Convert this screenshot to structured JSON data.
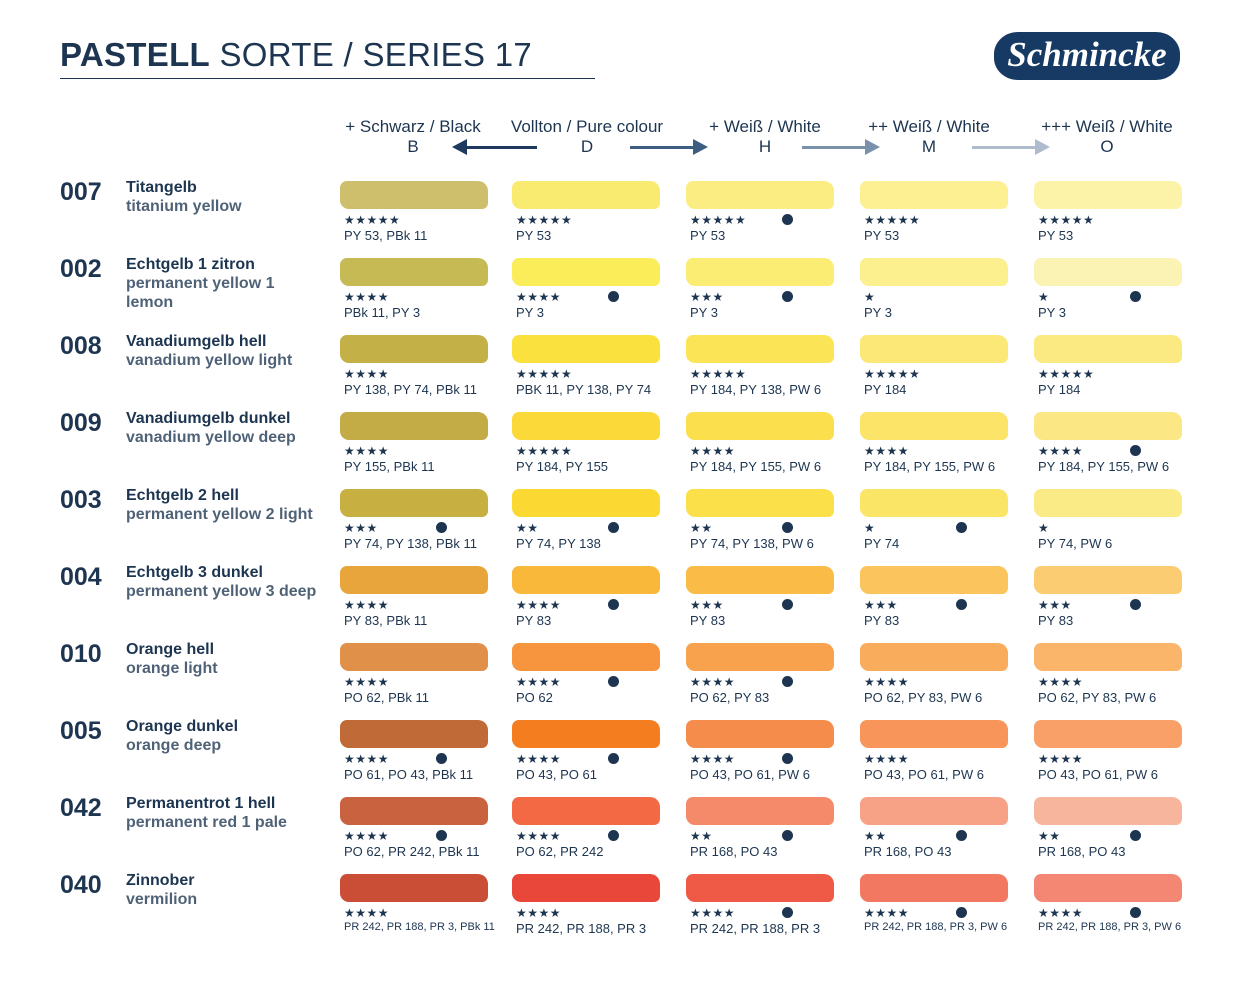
{
  "header": {
    "title_bold": "PASTELL",
    "title_rest": " SORTE / SERIES 17",
    "logo": "Schmincke"
  },
  "columns": [
    {
      "label": "+ Schwarz / Black",
      "code": "B"
    },
    {
      "label": "Vollton / Pure colour",
      "code": "D"
    },
    {
      "label": "+ Weiß / White",
      "code": "H"
    },
    {
      "label": "++ Weiß / White",
      "code": "M"
    },
    {
      "label": "+++ Weiß / White",
      "code": "O"
    }
  ],
  "arrows": [
    {
      "icon": "arrow-left-icon",
      "color": "#1d3a5e"
    },
    {
      "icon": "arrow-right-icon",
      "color": "#3d5e82"
    },
    {
      "icon": "arrow-right-icon",
      "color": "#7a91ab"
    },
    {
      "icon": "arrow-right-icon",
      "color": "#aebcce"
    }
  ],
  "rows": [
    {
      "number": "007",
      "name_de": "Titangelb",
      "name_en": "titanium yellow",
      "cells": [
        {
          "color": "#cdbf6c",
          "stars": "★★★★★",
          "dot": false,
          "pigments": "PY 53, PBk 11"
        },
        {
          "color": "#f9ea70",
          "stars": "★★★★★",
          "dot": false,
          "pigments": "PY 53"
        },
        {
          "color": "#fbed82",
          "stars": "★★★★★",
          "dot": true,
          "pigments": "PY 53"
        },
        {
          "color": "#fcf093",
          "stars": "★★★★★",
          "dot": false,
          "pigments": "PY 53"
        },
        {
          "color": "#fcf3a9",
          "stars": "★★★★★",
          "dot": false,
          "pigments": "PY 53"
        }
      ]
    },
    {
      "number": "002",
      "name_de": "Echtgelb 1 zitron",
      "name_en": "permanent yellow 1 lemon",
      "cells": [
        {
          "color": "#c6ba55",
          "stars": "★★★★",
          "dot": false,
          "pigments": "PBk 11, PY 3"
        },
        {
          "color": "#fbec5a",
          "stars": "★★★★",
          "dot": true,
          "pigments": "PY 3"
        },
        {
          "color": "#fbed74",
          "stars": "★★★",
          "dot": true,
          "pigments": "PY 3"
        },
        {
          "color": "#fbf08d",
          "stars": "★",
          "dot": false,
          "pigments": "PY 3"
        },
        {
          "color": "#fbf3b3",
          "stars": "★",
          "dot": true,
          "pigments": "PY 3"
        }
      ]
    },
    {
      "number": "008",
      "name_de": "Vanadiumgelb hell",
      "name_en": "vanadium yellow light",
      "cells": [
        {
          "color": "#c3b046",
          "stars": "★★★★",
          "dot": false,
          "pigments": "PY 138, PY 74, PBk 11"
        },
        {
          "color": "#fbe13e",
          "stars": "★★★★★",
          "dot": false,
          "pigments": "PBK 11, PY 138, PY 74"
        },
        {
          "color": "#fbe556",
          "stars": "★★★★★",
          "dot": false,
          "pigments": "PY 184, PY 138, PW 6"
        },
        {
          "color": "#fbe876",
          "stars": "★★★★★",
          "dot": false,
          "pigments": "PY 184"
        },
        {
          "color": "#fbea82",
          "stars": "★★★★★",
          "dot": false,
          "pigments": "PY 184"
        }
      ]
    },
    {
      "number": "009",
      "name_de": "Vanadiumgelb dunkel",
      "name_en": "vanadium yellow deep",
      "cells": [
        {
          "color": "#c3ab45",
          "stars": "★★★★",
          "dot": false,
          "pigments": "PY 155, PBk 11"
        },
        {
          "color": "#fbd938",
          "stars": "★★★★★",
          "dot": false,
          "pigments": "PY 184, PY 155"
        },
        {
          "color": "#fbdf4d",
          "stars": "★★★★",
          "dot": false,
          "pigments": "PY 184, PY 155, PW 6"
        },
        {
          "color": "#fbe468",
          "stars": "★★★★",
          "dot": false,
          "pigments": "PY 184, PY 155, PW 6"
        },
        {
          "color": "#fbe884",
          "stars": "★★★★",
          "dot": true,
          "pigments": "PY 184, PY 155, PW 6"
        }
      ]
    },
    {
      "number": "003",
      "name_de": "Echtgelb 2 hell",
      "name_en": "permanent yellow 2 light",
      "cells": [
        {
          "color": "#c7b041",
          "stars": "★★★",
          "dot": true,
          "pigments": "PY 74, PY 138, PBk 11"
        },
        {
          "color": "#fbd932",
          "stars": "★★",
          "dot": true,
          "pigments": "PY 74, PY 138"
        },
        {
          "color": "#fbe04a",
          "stars": "★★",
          "dot": true,
          "pigments": "PY 74, PY 138, PW 6"
        },
        {
          "color": "#fbe566",
          "stars": "★",
          "dot": true,
          "pigments": "PY 74"
        },
        {
          "color": "#fbeb86",
          "stars": "★",
          "dot": false,
          "pigments": "PY 74, PW 6"
        }
      ]
    },
    {
      "number": "004",
      "name_de": "Echtgelb 3 dunkel",
      "name_en": "permanent yellow 3 deep",
      "cells": [
        {
          "color": "#e8a53c",
          "stars": "★★★★",
          "dot": false,
          "pigments": "PY 83, PBk 11"
        },
        {
          "color": "#f9b83a",
          "stars": "★★★★",
          "dot": true,
          "pigments": "PY 83"
        },
        {
          "color": "#fabc47",
          "stars": "★★★",
          "dot": true,
          "pigments": "PY 83"
        },
        {
          "color": "#fbc45c",
          "stars": "★★★",
          "dot": true,
          "pigments": "PY 83"
        },
        {
          "color": "#fbcc72",
          "stars": "★★★",
          "dot": true,
          "pigments": "PY 83"
        }
      ]
    },
    {
      "number": "010",
      "name_de": "Orange hell",
      "name_en": "orange light",
      "cells": [
        {
          "color": "#e09048",
          "stars": "★★★★",
          "dot": false,
          "pigments": "PO 62, PBk 11"
        },
        {
          "color": "#f7953e",
          "stars": "★★★★",
          "dot": true,
          "pigments": "PO 62"
        },
        {
          "color": "#f8a24e",
          "stars": "★★★★",
          "dot": true,
          "pigments": "PO 62, PY 83"
        },
        {
          "color": "#f9ac5c",
          "stars": "★★★★",
          "dot": false,
          "pigments": "PO 62, PY 83, PW 6"
        },
        {
          "color": "#fab56a",
          "stars": "★★★★",
          "dot": false,
          "pigments": "PO 62, PY 83, PW 6"
        }
      ]
    },
    {
      "number": "005",
      "name_de": "Orange dunkel",
      "name_en": "orange deep",
      "cells": [
        {
          "color": "#c06a38",
          "stars": "★★★★",
          "dot": true,
          "pigments": "PO 61, PO 43, PBk 11"
        },
        {
          "color": "#f47d20",
          "stars": "★★★★",
          "dot": true,
          "pigments": "PO 43, PO 61"
        },
        {
          "color": "#f68c4c",
          "stars": "★★★★",
          "dot": true,
          "pigments": "PO 43, PO 61, PW 6"
        },
        {
          "color": "#f7955a",
          "stars": "★★★★",
          "dot": false,
          "pigments": "PO 43, PO 61, PW 6"
        },
        {
          "color": "#f8a068",
          "stars": "★★★★",
          "dot": false,
          "pigments": "PO 43, PO 61, PW 6"
        }
      ]
    },
    {
      "number": "042",
      "name_de": "Permanentrot 1 hell",
      "name_en": "permanent red 1 pale",
      "cells": [
        {
          "color": "#c9623e",
          "stars": "★★★★",
          "dot": true,
          "pigments": "PO 62, PR 242, PBk 11"
        },
        {
          "color": "#f26944",
          "stars": "★★★★",
          "dot": true,
          "pigments": "PO 62, PR 242"
        },
        {
          "color": "#f58a6a",
          "stars": "★★",
          "dot": true,
          "pigments": "PR 168, PO 43"
        },
        {
          "color": "#f7a287",
          "stars": "★★",
          "dot": true,
          "pigments": "PR 168, PO 43"
        },
        {
          "color": "#f8b59d",
          "stars": "★★",
          "dot": true,
          "pigments": "PR 168, PO 43"
        }
      ]
    },
    {
      "number": "040",
      "name_de": "Zinnober",
      "name_en": "vermilion",
      "cells": [
        {
          "color": "#ca4d36",
          "stars": "★★★★",
          "dot": false,
          "pigments": "PR 242, PR 188, PR 3, PBk 11"
        },
        {
          "color": "#e9473a",
          "stars": "★★★★",
          "dot": false,
          "pigments": "PR 242, PR 188, PR 3"
        },
        {
          "color": "#ef5a47",
          "stars": "★★★★",
          "dot": true,
          "pigments": "PR 242, PR 188, PR 3"
        },
        {
          "color": "#f27862",
          "stars": "★★★★",
          "dot": true,
          "pigments": "PR 242, PR 188, PR 3, PW 6"
        },
        {
          "color": "#f38774",
          "stars": "★★★★",
          "dot": true,
          "pigments": "PR 242, PR 188, PR 3, PW 6"
        }
      ]
    }
  ]
}
